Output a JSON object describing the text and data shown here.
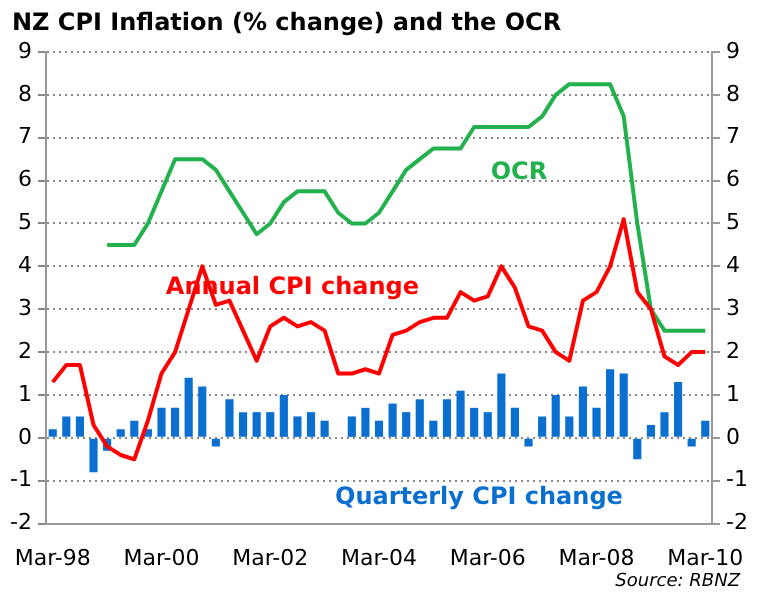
{
  "chart_data": {
    "type": "bar",
    "title": "NZ CPI Inflation (% change) and the OCR",
    "categories": [
      "Mar-98",
      null,
      null,
      null,
      null,
      null,
      null,
      null,
      "Mar-00",
      null,
      null,
      null,
      null,
      null,
      null,
      null,
      "Mar-02",
      null,
      null,
      null,
      null,
      null,
      null,
      null,
      "Mar-04",
      null,
      null,
      null,
      null,
      null,
      null,
      null,
      "Mar-06",
      null,
      null,
      null,
      null,
      null,
      null,
      null,
      "Mar-08",
      null,
      null,
      null,
      null,
      null,
      null,
      null,
      "Mar-10"
    ],
    "series": [
      {
        "name": "Quarterly CPI change",
        "type": "bar",
        "color": "#0a6fcf",
        "values": [
          0.2,
          0.5,
          0.5,
          -0.8,
          -0.3,
          0.2,
          0.4,
          0.2,
          0.7,
          0.7,
          1.4,
          1.2,
          -0.2,
          0.9,
          0.6,
          0.6,
          0.6,
          1.0,
          0.5,
          0.6,
          0.4,
          0,
          0.5,
          0.7,
          0.4,
          0.8,
          0.6,
          0.9,
          0.4,
          0.9,
          1.1,
          0.7,
          0.6,
          1.5,
          0.7,
          -0.2,
          0.5,
          1.0,
          0.5,
          1.2,
          0.7,
          1.6,
          1.5,
          -0.5,
          0.3,
          0.6,
          1.3,
          -0.2,
          0.4
        ]
      },
      {
        "name": "Annual CPI change",
        "type": "line",
        "color": "#ff0000",
        "values": [
          1.3,
          1.7,
          1.7,
          0.3,
          -0.2,
          -0.4,
          -0.5,
          0.4,
          1.5,
          2.0,
          3.0,
          4.0,
          3.1,
          3.2,
          2.5,
          1.8,
          2.6,
          2.8,
          2.6,
          2.7,
          2.5,
          1.5,
          1.5,
          1.6,
          1.5,
          2.4,
          2.5,
          2.7,
          2.8,
          2.8,
          3.4,
          3.2,
          3.3,
          4.0,
          3.5,
          2.6,
          2.5,
          2.0,
          1.8,
          3.2,
          3.4,
          4.0,
          5.1,
          3.4,
          3.0,
          1.9,
          1.7,
          2.0,
          2.0
        ]
      },
      {
        "name": "OCR",
        "type": "line",
        "color": "#22b14c",
        "values": [
          null,
          null,
          null,
          null,
          4.5,
          4.5,
          4.5,
          5.0,
          5.75,
          6.5,
          6.5,
          6.5,
          6.25,
          5.75,
          5.25,
          4.75,
          5.0,
          5.5,
          5.75,
          5.75,
          5.75,
          5.25,
          5.0,
          5.0,
          5.25,
          5.75,
          6.25,
          6.5,
          6.75,
          6.75,
          6.75,
          7.25,
          7.25,
          7.25,
          7.25,
          7.25,
          7.5,
          8.0,
          8.25,
          8.25,
          8.25,
          8.25,
          7.5,
          5.0,
          3.0,
          2.5,
          2.5,
          2.5,
          2.5
        ]
      }
    ],
    "ylim": [
      -2,
      9
    ],
    "yticks": [
      -2,
      -1,
      0,
      1,
      2,
      3,
      4,
      5,
      6,
      7,
      8,
      9
    ],
    "y2lim": [
      -2,
      9
    ],
    "y2ticks": [
      -2,
      -1,
      0,
      1,
      2,
      3,
      4,
      5,
      6,
      7,
      8,
      9
    ],
    "grid": "y",
    "legend": false,
    "marker": "none",
    "line_style": "solid",
    "annotations": [
      "Source: RBNZ"
    ]
  }
}
